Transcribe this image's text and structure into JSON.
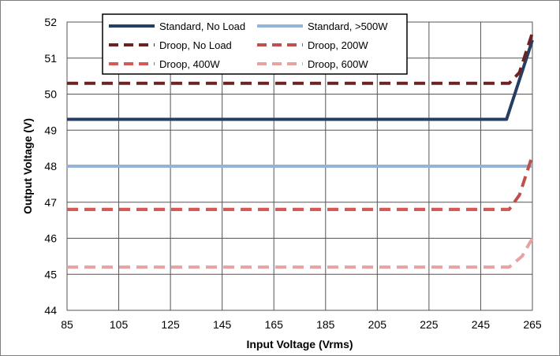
{
  "chart_data": {
    "type": "line",
    "xlabel": "Input Voltage (Vrms)",
    "ylabel": "Output Voltage (V)",
    "xlim": [
      85,
      265
    ],
    "ylim": [
      44,
      52
    ],
    "x_ticks": [
      "85",
      "105",
      "125",
      "145",
      "165",
      "185",
      "205",
      "225",
      "245",
      "265"
    ],
    "y_ticks": [
      "44",
      "45",
      "46",
      "47",
      "48",
      "49",
      "50",
      "51",
      "52"
    ],
    "grid": true,
    "legend_position": "top-center",
    "series": [
      {
        "name": "Standard, No Load",
        "color": "#253f63",
        "dashed": false,
        "points": [
          [
            85,
            49.3
          ],
          [
            255,
            49.3
          ],
          [
            265,
            51.5
          ]
        ]
      },
      {
        "name": "Standard, >500W",
        "color": "#95b3d7",
        "dashed": false,
        "points": [
          [
            85,
            48.0
          ],
          [
            265,
            48.0
          ]
        ]
      },
      {
        "name": "Droop, No Load",
        "color": "#6b2222",
        "dashed": true,
        "points": [
          [
            85,
            50.3
          ],
          [
            256,
            50.3
          ],
          [
            260,
            50.6
          ],
          [
            265,
            51.7
          ]
        ]
      },
      {
        "name": "Droop, 200W",
        "color": "#c0504d",
        "dashed": true,
        "points": [
          [
            85,
            46.8
          ],
          [
            256,
            46.8
          ],
          [
            260,
            47.2
          ],
          [
            265,
            48.3
          ]
        ]
      },
      {
        "name": "Droop, 400W",
        "color": "#d35a57",
        "dashed": true,
        "points": [
          [
            85,
            46.8
          ],
          [
            256,
            46.8
          ]
        ]
      },
      {
        "name": "Droop, 600W",
        "color": "#e6a3a1",
        "dashed": true,
        "points": [
          [
            85,
            45.2
          ],
          [
            256,
            45.2
          ],
          [
            261,
            45.5
          ],
          [
            265,
            46.0
          ]
        ]
      }
    ]
  }
}
